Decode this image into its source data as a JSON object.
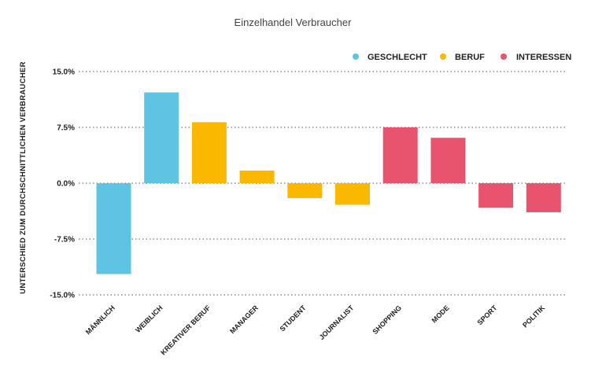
{
  "chart_data": {
    "type": "bar",
    "title": "Einzelhandel Verbraucher",
    "xlabel": "",
    "ylabel": "UNTERSCHIED ZUM DURCHSCHNITTLICHEN VERBRAUCHER",
    "ylim": [
      -15.0,
      15.0
    ],
    "yticks": [
      15.0,
      7.5,
      0.0,
      -7.5,
      -15.0
    ],
    "ytick_labels": [
      "15.0%",
      "7.5%",
      "0.0%",
      "-7.5%",
      "-15.0%"
    ],
    "categories": [
      "MÄNNLICH",
      "WEIBLICH",
      "KREATIVER BERUF",
      "MANAGER",
      "STUDENT",
      "JOURNALIST",
      "SHOPPING",
      "MODE",
      "SPORT",
      "POLITIK"
    ],
    "values": [
      -12.2,
      12.2,
      8.2,
      1.7,
      -2.0,
      -2.9,
      7.5,
      6.1,
      -3.3,
      -3.9
    ],
    "groups": [
      "GESCHLECHT",
      "GESCHLECHT",
      "BERUF",
      "BERUF",
      "BERUF",
      "BERUF",
      "INTERESSEN",
      "INTERESSEN",
      "INTERESSEN",
      "INTERESSEN"
    ],
    "legend": [
      {
        "name": "GESCHLECHT",
        "color": "#5FC3E4"
      },
      {
        "name": "BERUF",
        "color": "#FBB800"
      },
      {
        "name": "INTERESSEN",
        "color": "#E8546E"
      }
    ],
    "legend_position": "top-right",
    "grid": true
  }
}
